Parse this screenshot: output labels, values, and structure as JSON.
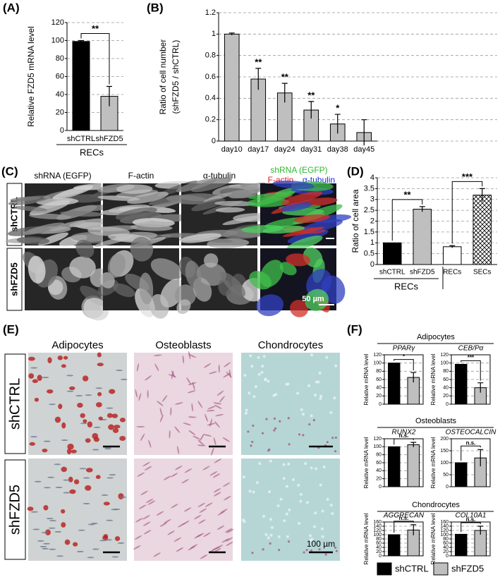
{
  "panel_labels": [
    "(A)",
    "(B)",
    "(C)",
    "(D)",
    "(E)",
    "(F)"
  ],
  "chart_data": [
    {
      "type": "bar",
      "ylabel": "Relative FZD5 mRNA level",
      "categories": [
        "shCTRL",
        "shFZD5"
      ],
      "values": [
        99,
        38
      ],
      "errors": [
        1,
        11
      ],
      "colors": [
        "#000000",
        "#bfbfbf"
      ],
      "ylim": [
        0,
        120
      ],
      "yticks": [
        0,
        20,
        40,
        60,
        80,
        100,
        120
      ],
      "grid": true,
      "group_label": "RECs",
      "brackets": [
        "**"
      ]
    },
    {
      "type": "bar",
      "ylabel": [
        "Ratio of cell number",
        "(shFZD5 / shCTRL)"
      ],
      "categories": [
        "day10",
        "day17",
        "day24",
        "day31",
        "day38",
        "day45"
      ],
      "values": [
        1.0,
        0.58,
        0.45,
        0.29,
        0.16,
        0.08
      ],
      "errors": [
        0.01,
        0.1,
        0.09,
        0.08,
        0.09,
        0.12
      ],
      "colors": [
        "#bfbfbf",
        "#bfbfbf",
        "#bfbfbf",
        "#bfbfbf",
        "#bfbfbf",
        "#bfbfbf"
      ],
      "ylim": [
        0,
        1.2
      ],
      "yticks": [
        0,
        0.2,
        0.4,
        0.6,
        0.8,
        1,
        1.2
      ],
      "grid": true,
      "significance": [
        null,
        "**",
        "**",
        "**",
        "*",
        null
      ]
    },
    {
      "type": "bar",
      "ylabel": "Ratio of cell area",
      "categories": [
        "shCTRL",
        "shFZD5",
        "RECs",
        "SECs"
      ],
      "values": [
        1,
        2.55,
        0.82,
        3.2
      ],
      "errors": [
        0,
        0.12,
        0.05,
        0.3
      ],
      "colors": [
        "#000000",
        "#bfbfbf",
        "#ffffff",
        "#ffffff"
      ],
      "hatch": [
        false,
        false,
        false,
        true
      ],
      "ylim": [
        0,
        4
      ],
      "yticks": [
        0,
        0.5,
        1,
        1.5,
        2,
        2.5,
        3,
        3.5,
        4
      ],
      "grid": true,
      "group_label": "RECs",
      "brackets": [
        "**",
        "***"
      ]
    },
    {
      "type": "bar",
      "title": "PPARγ",
      "ylabel": "Relative mRNA level",
      "values": [
        100,
        65
      ],
      "errors": [
        0,
        12
      ],
      "colors": [
        "#000000",
        "#bfbfbf"
      ],
      "ylim": [
        0,
        120
      ],
      "yticks": [
        0,
        20,
        40,
        60,
        80,
        100,
        120
      ],
      "grid": true,
      "brackets": [
        "*"
      ]
    },
    {
      "type": "bar",
      "title": "CEB/Pα",
      "ylabel": "Relative mRNA level",
      "values": [
        97,
        40
      ],
      "errors": [
        0,
        12
      ],
      "colors": [
        "#000000",
        "#bfbfbf"
      ],
      "ylim": [
        0,
        120
      ],
      "yticks": [
        0,
        20,
        40,
        60,
        80,
        100,
        120
      ],
      "grid": true,
      "brackets": [
        "***"
      ]
    },
    {
      "type": "bar",
      "title": "RUNX2",
      "ylabel": "Relative mRNA level",
      "values": [
        100,
        105
      ],
      "errors": [
        0,
        6
      ],
      "colors": [
        "#000000",
        "#bfbfbf"
      ],
      "ylim": [
        0,
        120
      ],
      "yticks": [
        0,
        20,
        40,
        60,
        80,
        100,
        120
      ],
      "grid": true,
      "brackets": [
        "n.s."
      ]
    },
    {
      "type": "bar",
      "title": "OSTEOCALCIN",
      "ylabel": "Relative mRNA level",
      "values": [
        100,
        120
      ],
      "errors": [
        0,
        35
      ],
      "colors": [
        "#000000",
        "#bfbfbf"
      ],
      "ylim": [
        0,
        200
      ],
      "yticks": [
        0,
        50,
        100,
        150,
        200
      ],
      "grid": true,
      "brackets": [
        "n.s."
      ]
    },
    {
      "type": "bar",
      "title": "AGGRECAN",
      "ylabel": "Relative mRNA level",
      "values": [
        100,
        122
      ],
      "errors": [
        0,
        25
      ],
      "colors": [
        "#000000",
        "#bfbfbf"
      ],
      "ylim": [
        0,
        160
      ],
      "yticks": [
        0,
        20,
        40,
        60,
        80,
        100,
        120,
        140,
        160
      ],
      "grid": true,
      "brackets": [
        "n.s."
      ]
    },
    {
      "type": "bar",
      "title": "COL10A1",
      "ylabel": "Relative mRNA level",
      "values": [
        102,
        120
      ],
      "errors": [
        0,
        20
      ],
      "colors": [
        "#000000",
        "#bfbfbf"
      ],
      "ylim": [
        0,
        160
      ],
      "yticks": [
        0,
        20,
        40,
        60,
        80,
        100,
        120,
        140,
        160
      ],
      "grid": true,
      "brackets": [
        "n.s."
      ]
    }
  ],
  "panel_c": {
    "columns": [
      "shRNA (EGFP)",
      "F-actin",
      "α-tubulin"
    ],
    "merged": [
      {
        "text": "shRNA (EGFP)",
        "color": "#2db82d"
      },
      {
        "text": "F-actin",
        "color": "#e0201c"
      },
      {
        "text": "α-tubulin",
        "color": "#1c2ad0"
      }
    ],
    "rows": [
      "shCTRL",
      "shFZD5"
    ],
    "scale": "50 µm"
  },
  "panel_e": {
    "columns": [
      "Adipocytes",
      "Osteoblasts",
      "Chondrocytes"
    ],
    "rows": [
      "shCTRL",
      "shFZD5"
    ],
    "scale": "100 µm"
  },
  "panel_f": {
    "sections": [
      "Adipocytes",
      "Osteoblasts",
      "Chondrocytes"
    ],
    "legend": [
      {
        "name": "shCTRL",
        "color": "#000000"
      },
      {
        "name": "shFZD5",
        "color": "#bfbfbf"
      }
    ]
  }
}
